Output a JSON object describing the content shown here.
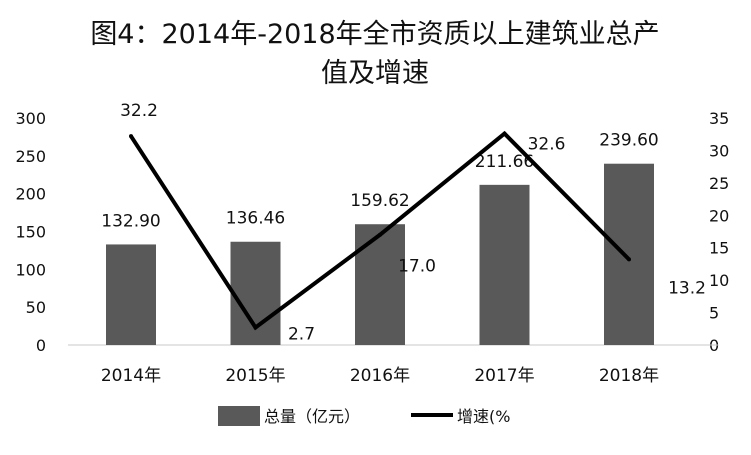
{
  "chart_data": {
    "type": "bar",
    "title_lines": [
      "图4：2014年-2018年全市资质以上建筑业总产",
      "值及增速"
    ],
    "categories": [
      "2014年",
      "2015年",
      "2016年",
      "2017年",
      "2018年"
    ],
    "series": [
      {
        "name": "总量（亿元）",
        "type": "bar",
        "axis": "left",
        "color": "#595959",
        "values": [
          132.9,
          136.46,
          159.62,
          211.66,
          239.6
        ],
        "labels": [
          "132.90",
          "136.46",
          "159.62",
          "211.66",
          "239.60"
        ]
      },
      {
        "name": "增速(%",
        "type": "line",
        "axis": "right",
        "color": "#000000",
        "values": [
          32.2,
          2.7,
          17.0,
          32.6,
          13.2
        ],
        "labels": [
          "32.2",
          "2.7",
          "17.0",
          "32.6",
          "13.2"
        ]
      }
    ],
    "y_left": {
      "min": 0,
      "max": 300,
      "ticks": [
        "0",
        "50",
        "100",
        "150",
        "200",
        "250",
        "300"
      ]
    },
    "y_right": {
      "min": 0,
      "max": 35,
      "ticks": [
        "0",
        "5",
        "10",
        "15",
        "20",
        "25",
        "30",
        "35"
      ]
    },
    "grid": false,
    "legend_position": "bottom"
  }
}
